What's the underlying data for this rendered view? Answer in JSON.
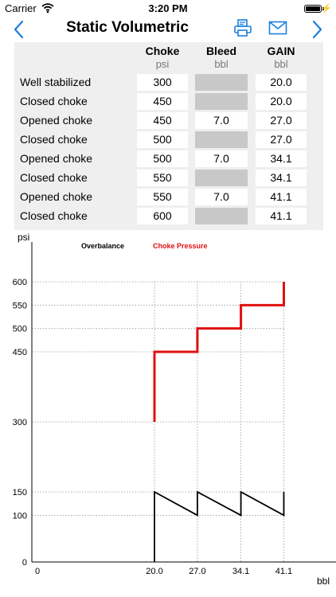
{
  "status_bar": {
    "carrier": "Carrier",
    "time": "3:20 PM"
  },
  "navbar": {
    "title": "Static Volumetric"
  },
  "table": {
    "headers": [
      {
        "name": "Choke",
        "unit": "psi"
      },
      {
        "name": "Bleed",
        "unit": "bbl"
      },
      {
        "name": "GAIN",
        "unit": "bbl"
      }
    ],
    "rows": [
      {
        "label": "Well stabilized",
        "choke": "300",
        "bleed": "",
        "gain": "20.0"
      },
      {
        "label": "Closed choke",
        "choke": "450",
        "bleed": "",
        "gain": "20.0"
      },
      {
        "label": "Opened choke",
        "choke": "450",
        "bleed": "7.0",
        "gain": "27.0"
      },
      {
        "label": "Closed choke",
        "choke": "500",
        "bleed": "",
        "gain": "27.0"
      },
      {
        "label": "Opened choke",
        "choke": "500",
        "bleed": "7.0",
        "gain": "34.1"
      },
      {
        "label": "Closed choke",
        "choke": "550",
        "bleed": "",
        "gain": "34.1"
      },
      {
        "label": "Opened choke",
        "choke": "550",
        "bleed": "7.0",
        "gain": "41.1"
      },
      {
        "label": "Closed choke",
        "choke": "600",
        "bleed": "",
        "gain": "41.1"
      }
    ]
  },
  "chart_data": {
    "type": "line",
    "xlabel": "bbl",
    "ylabel": "psi",
    "x_ticks": [
      "0",
      "20.0",
      "27.0",
      "34.1",
      "41.1"
    ],
    "y_ticks": [
      "0",
      "100",
      "150",
      "300",
      "450",
      "500",
      "550",
      "600"
    ],
    "xlim": [
      0,
      48
    ],
    "ylim": [
      0,
      640
    ],
    "grid": "dotted",
    "legend": "top-left",
    "series": [
      {
        "name": "Overbalance",
        "color": "#000000",
        "x": [
          20.0,
          20.0,
          27.0,
          27.0,
          34.1,
          34.1,
          41.1,
          41.1
        ],
        "y": [
          0,
          150,
          100,
          150,
          100,
          150,
          100,
          150
        ]
      },
      {
        "name": "Choke Pressure",
        "color": "#e01010",
        "x": [
          20.0,
          20.0,
          27.0,
          27.0,
          34.1,
          34.1,
          41.1,
          41.1
        ],
        "y": [
          300,
          450,
          450,
          500,
          500,
          550,
          550,
          600
        ]
      }
    ]
  },
  "colors": {
    "accent": "#1a7fe0",
    "choke_line": "#e01010"
  }
}
